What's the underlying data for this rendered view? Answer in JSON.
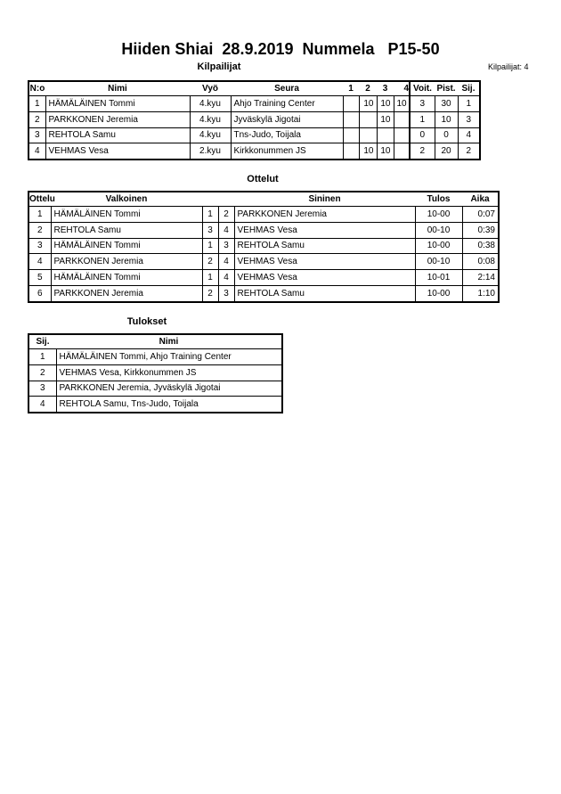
{
  "title": "Hiiden Shiai  28.9.2019  Nummela   P15-50",
  "competitors": {
    "heading": "Kilpailijat",
    "count_label": "Kilpailijat: 4",
    "columns": [
      "N:o",
      "Nimi",
      "Vyö",
      "Seura",
      "1",
      "2",
      "3",
      "4",
      "Voit.",
      "Pist.",
      "Sij."
    ],
    "rows": [
      {
        "no": "1",
        "name": "HÄMÄLÄINEN Tommi",
        "belt": "4.kyu",
        "club": "Ahjo Training Center",
        "r1": "",
        "r2": "10",
        "r3": "10",
        "r4": "10",
        "wins": "3",
        "points": "30",
        "place": "1"
      },
      {
        "no": "2",
        "name": "PARKKONEN Jeremia",
        "belt": "4.kyu",
        "club": "Jyväskylä Jigotai",
        "r1": "",
        "r2": "",
        "r3": "10",
        "r4": "",
        "wins": "1",
        "points": "10",
        "place": "3"
      },
      {
        "no": "3",
        "name": "REHTOLA Samu",
        "belt": "4.kyu",
        "club": "Tns-Judo, Toijala",
        "r1": "",
        "r2": "",
        "r3": "",
        "r4": "",
        "wins": "0",
        "points": "0",
        "place": "4"
      },
      {
        "no": "4",
        "name": "VEHMAS Vesa",
        "belt": "2.kyu",
        "club": "Kirkkonummen JS",
        "r1": "",
        "r2": "10",
        "r3": "10",
        "r4": "",
        "wins": "2",
        "points": "20",
        "place": "2"
      }
    ]
  },
  "matches": {
    "heading": "Ottelut",
    "columns": [
      "Ottelu",
      "Valkoinen",
      "",
      "",
      "Sininen",
      "Tulos",
      "Aika"
    ],
    "rows": [
      {
        "no": "1",
        "white": "HÄMÄLÄINEN Tommi",
        "wn": "1",
        "bn": "2",
        "blue": "PARKKONEN Jeremia",
        "result": "10-00",
        "time": "0:07"
      },
      {
        "no": "2",
        "white": "REHTOLA Samu",
        "wn": "3",
        "bn": "4",
        "blue": "VEHMAS Vesa",
        "result": "00-10",
        "time": "0:39"
      },
      {
        "no": "3",
        "white": "HÄMÄLÄINEN Tommi",
        "wn": "1",
        "bn": "3",
        "blue": "REHTOLA Samu",
        "result": "10-00",
        "time": "0:38"
      },
      {
        "no": "4",
        "white": "PARKKONEN Jeremia",
        "wn": "2",
        "bn": "4",
        "blue": "VEHMAS Vesa",
        "result": "00-10",
        "time": "0:08"
      },
      {
        "no": "5",
        "white": "HÄMÄLÄINEN Tommi",
        "wn": "1",
        "bn": "4",
        "blue": "VEHMAS Vesa",
        "result": "10-01",
        "time": "2:14"
      },
      {
        "no": "6",
        "white": "PARKKONEN Jeremia",
        "wn": "2",
        "bn": "3",
        "blue": "REHTOLA Samu",
        "result": "10-00",
        "time": "1:10"
      }
    ]
  },
  "results": {
    "heading": "Tulokset",
    "columns": [
      "Sij.",
      "Nimi"
    ],
    "rows": [
      {
        "place": "1",
        "name": "HÄMÄLÄINEN Tommi, Ahjo Training Center"
      },
      {
        "place": "2",
        "name": "VEHMAS Vesa, Kirkkonummen JS"
      },
      {
        "place": "3",
        "name": "PARKKONEN Jeremia, Jyväskylä Jigotai"
      },
      {
        "place": "4",
        "name": "REHTOLA Samu, Tns-Judo, Toijala"
      }
    ]
  }
}
